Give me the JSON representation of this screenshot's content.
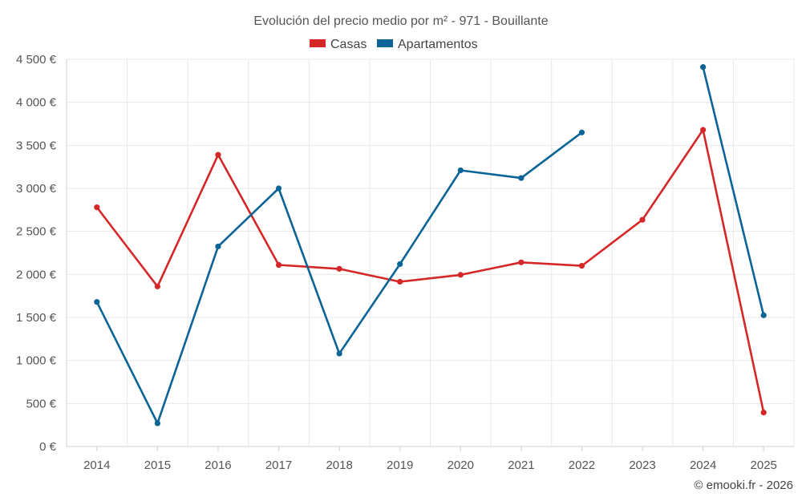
{
  "chart_data": {
    "type": "line",
    "title": "Evolución del precio medio por m² - 971 - Bouillante",
    "x": [
      "2014",
      "2015",
      "2016",
      "2017",
      "2018",
      "2019",
      "2020",
      "2021",
      "2022",
      "2023",
      "2024",
      "2025"
    ],
    "ylim": [
      0,
      4500
    ],
    "y_ticks": [
      0,
      500,
      1000,
      1500,
      2000,
      2500,
      3000,
      3500,
      4000,
      4500
    ],
    "y_tick_labels": [
      "0 €",
      "500 €",
      "1 000 €",
      "1 500 €",
      "2 000 €",
      "2 500 €",
      "3 000 €",
      "3 500 €",
      "4 000 €",
      "4 500 €"
    ],
    "grid": true,
    "legend_position": "top-center",
    "series": [
      {
        "name": "Casas",
        "color": "#d62728",
        "values": [
          2780,
          1860,
          3390,
          2110,
          2065,
          1915,
          1995,
          2140,
          2100,
          2635,
          3680,
          395
        ]
      },
      {
        "name": "Apartamentos",
        "color": "#0a6496",
        "values": [
          1680,
          270,
          2325,
          3000,
          1080,
          2120,
          3210,
          3120,
          3650,
          null,
          4410,
          1525
        ]
      }
    ]
  },
  "credit": "© emooki.fr - 2026"
}
